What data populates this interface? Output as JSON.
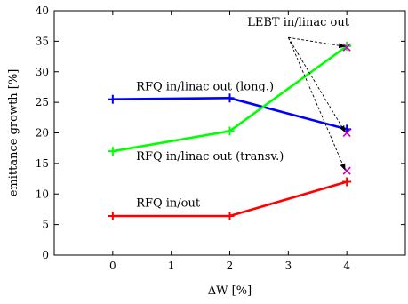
{
  "chart_data": {
    "type": "line",
    "title": "",
    "xlabel": "ΔW [%]",
    "ylabel": "emittance growth [%]",
    "xlim": [
      -1,
      5
    ],
    "ylim": [
      0,
      40
    ],
    "xticks": [
      0,
      1,
      2,
      3,
      4
    ],
    "yticks": [
      0,
      5,
      10,
      15,
      20,
      25,
      30,
      35,
      40
    ],
    "grid": false,
    "series": [
      {
        "name": "RFQ in/linac out (long.)",
        "color": "#0000ff",
        "x": [
          0,
          2,
          4
        ],
        "y": [
          25.5,
          25.7,
          20.6
        ]
      },
      {
        "name": "RFQ in/linac out (transv.)",
        "color": "#00ff00",
        "x": [
          0,
          2,
          4
        ],
        "y": [
          17.0,
          20.3,
          34.2
        ]
      },
      {
        "name": "RFQ in/out",
        "color": "#ff0000",
        "x": [
          0,
          2,
          4
        ],
        "y": [
          6.4,
          6.4,
          12.0
        ]
      }
    ],
    "extra_points": {
      "name": "LEBT in/linac out",
      "color": "#cc00cc",
      "points": [
        [
          4,
          34.0
        ],
        [
          4,
          20.0
        ],
        [
          4,
          13.8
        ]
      ]
    },
    "annotations": [
      {
        "text": "RFQ in/linac out (long.)",
        "x": 0.4,
        "y": 27.0
      },
      {
        "text": "RFQ in/linac out (transv.)",
        "x": 0.4,
        "y": 15.6
      },
      {
        "text": "RFQ in/out",
        "x": 0.4,
        "y": 7.9
      },
      {
        "text": "LEBT in/linac out",
        "x": 2.3,
        "y": 37.5
      }
    ],
    "arrows": {
      "from": [
        3.0,
        35.6
      ],
      "to": [
        [
          4,
          34.0
        ],
        [
          4,
          20.0
        ],
        [
          4,
          13.8
        ]
      ]
    }
  }
}
